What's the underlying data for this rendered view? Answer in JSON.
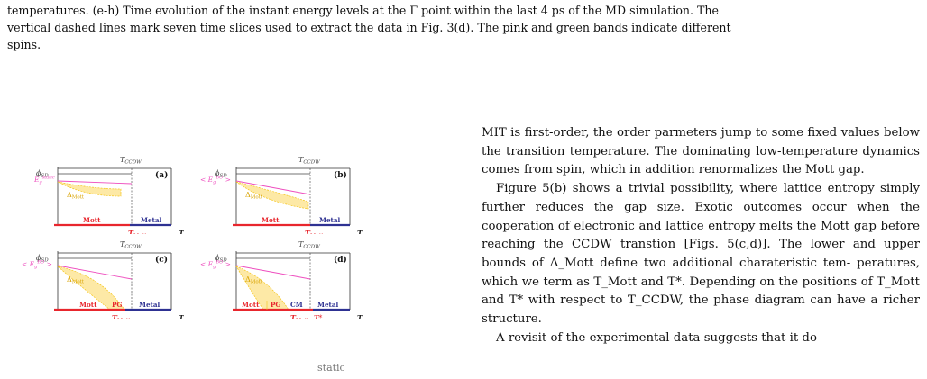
{
  "caption": {
    "lines": [
      "temperatures. (e-h) Time evolution of the instant energy levels at the Γ point within the last 4 ps of the MD simulation. The",
      "vertical dashed lines mark seven time slices used to extract the data in Fig. 3(d). The pink and green bands indicate different",
      "spins."
    ]
  },
  "figure": {
    "panels": [
      {
        "label": "(a)",
        "t_top": "T",
        "t_top_sub": "CCDW",
        "phi": "ϕ",
        "phi_sub": "SD",
        "eg": "E",
        "eg_sub": "g",
        "eg_sup": "static",
        "delta": "Δ",
        "delta_sub": "Mott",
        "phases": [
          "Mott",
          "Metal"
        ],
        "t_mott": "T",
        "t_mott_sub": "Mott",
        "t_star": "",
        "axis_t": "T"
      },
      {
        "label": "(b)",
        "t_top": "T",
        "t_top_sub": "CCDW",
        "phi": "ϕ",
        "phi_sub": "SD",
        "eg": "< E",
        "eg_sub": "g",
        "eg_sup": "BO",
        "eg_close": " >",
        "delta": "Δ",
        "delta_sub": "Mott",
        "phases": [
          "Mott",
          "Metal"
        ],
        "t_mott": "T",
        "t_mott_sub": "Mott",
        "t_star": "",
        "axis_t": "T"
      },
      {
        "label": "(c)",
        "t_top": "T",
        "t_top_sub": "CCDW",
        "phi": "ϕ",
        "phi_sub": "SD",
        "eg": "< E",
        "eg_sub": "g",
        "eg_sup": "BO",
        "eg_close": " >",
        "delta": "Δ",
        "delta_sub": "Mott",
        "phases": [
          "Mott",
          "PG",
          "Metal"
        ],
        "t_mott": "T",
        "t_mott_sub": "Mott",
        "t_star": "",
        "axis_t": "T"
      },
      {
        "label": "(d)",
        "t_top": "T",
        "t_top_sub": "CCDW",
        "phi": "ϕ",
        "phi_sub": "SD",
        "eg": "< E",
        "eg_sub": "g",
        "eg_sup": "BO",
        "eg_close": " >",
        "delta": "Δ",
        "delta_sub": "Mott",
        "phases": [
          "Mott",
          "PG",
          "CM",
          "Metal"
        ],
        "t_mott": "T",
        "t_mott_sub": "Mott",
        "t_star": "T*",
        "axis_t": "T"
      }
    ],
    "colors": {
      "mott": "#e8262d",
      "metal": "#2e3192",
      "band": "#f5c518",
      "band_fill": "#fde9a6",
      "gap_line": "#ee4fbf",
      "frame": "#333333",
      "pg": "#e8262d",
      "cm": "#2e3192"
    }
  },
  "body": {
    "p1_lines": [
      "MIT is first-order, the order parmeters jump to some",
      "fixed values below the transition temperature. The",
      "dominating low-temperature dynamics comes from spin,",
      "which in addition renormalizes the Mott gap."
    ],
    "p2_lines": [
      "Figure 5(b) shows a trivial possibility, where lattice",
      "entropy simply further reduces the gap size. Exotic",
      "outcomes occur when the cooperation of electronic and",
      "lattice entropy melts the Mott gap before reaching the",
      "CCDW transtion [Figs. 5(c,d)]. The lower and upper",
      "bounds of Δ_Mott define two additional charateristic tem-",
      "peratures, which we term as T_Mott and T*. Depending",
      "on the positions of T_Mott and T* with respect to T_CCDW,",
      "the phase diagram can have a richer structure."
    ],
    "p3_fragment": "A revisit of the experimental data suggests that it do"
  },
  "fragment_text": "static"
}
